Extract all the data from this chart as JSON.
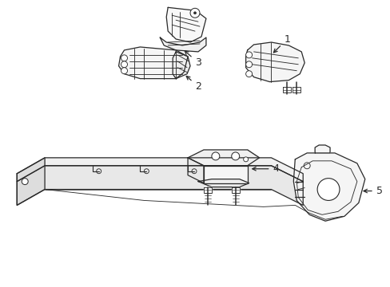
{
  "background_color": "#ffffff",
  "line_color": "#2a2a2a",
  "line_width": 0.9,
  "fig_width": 4.89,
  "fig_height": 3.6,
  "dpi": 100
}
